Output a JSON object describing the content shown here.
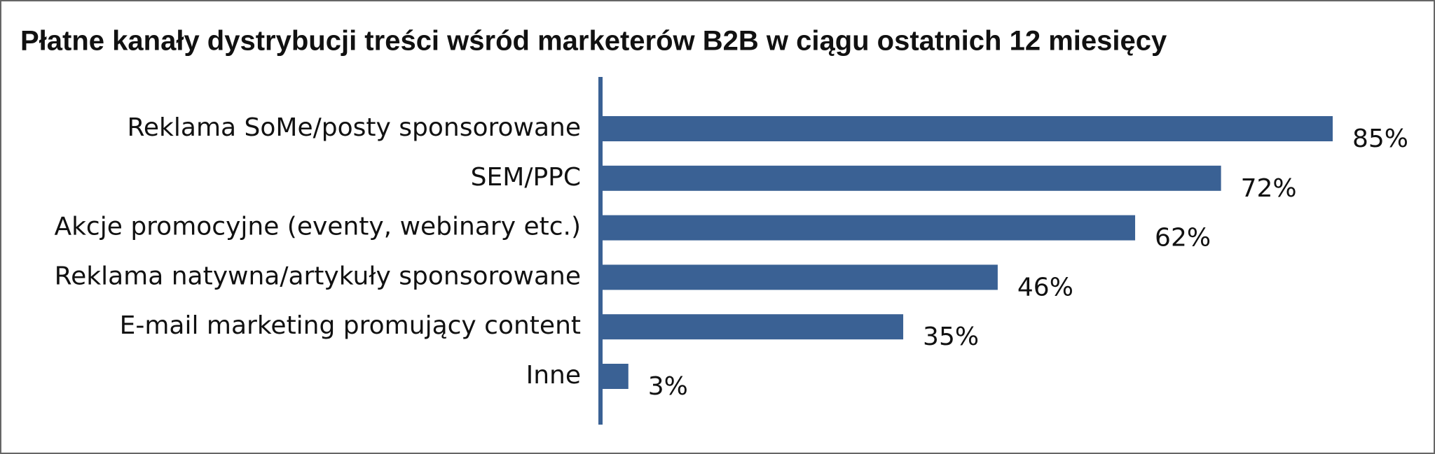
{
  "chart_data": {
    "type": "bar",
    "orientation": "horizontal",
    "title": "Płatne kanały dystrybucji treści wśród marketerów B2B w ciągu ostatnich 12 miesięcy",
    "categories": [
      "Reklama SoMe/posty sponsorowane",
      "SEM/PPC",
      "Akcje promocyjne (eventy, webinary etc.)",
      "Reklama natywna/artykuły sponsorowane",
      "E-mail marketing promujący content",
      "Inne"
    ],
    "values": [
      85,
      72,
      62,
      46,
      35,
      3
    ],
    "value_labels": [
      "85%",
      "72%",
      "62%",
      "46%",
      "35%",
      "3%"
    ],
    "color": "#3a6194"
  }
}
